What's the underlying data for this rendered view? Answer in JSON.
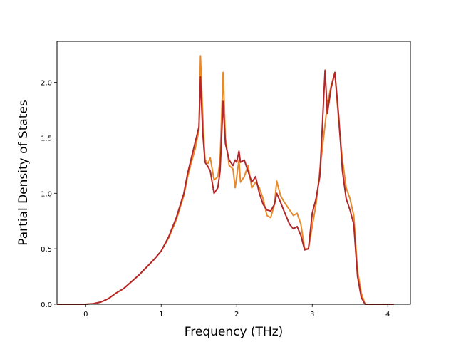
{
  "chart_data": {
    "type": "line",
    "title": "",
    "xlabel": "Frequency (THz)",
    "ylabel": "Partial Density of States",
    "xlim": [
      -0.38,
      4.3
    ],
    "ylim": [
      0.0,
      2.37
    ],
    "xticks": [
      0,
      1,
      2,
      3,
      4
    ],
    "xtick_labels": [
      "0",
      "1",
      "2",
      "3",
      "4"
    ],
    "yticks": [
      0.0,
      0.5,
      1.0,
      1.5,
      2.0
    ],
    "ytick_labels": [
      "0.0",
      "0.5",
      "1.0",
      "1.5",
      "2.0"
    ],
    "grid": false,
    "legend": "none",
    "series": [
      {
        "color": "#e8892a",
        "points": [
          [
            -0.38,
            0.0
          ],
          [
            0.0,
            0.0
          ],
          [
            0.1,
            0.005
          ],
          [
            0.2,
            0.02
          ],
          [
            0.3,
            0.05
          ],
          [
            0.4,
            0.1
          ],
          [
            0.5,
            0.14
          ],
          [
            0.6,
            0.2
          ],
          [
            0.7,
            0.26
          ],
          [
            0.8,
            0.33
          ],
          [
            0.9,
            0.4
          ],
          [
            1.0,
            0.48
          ],
          [
            1.1,
            0.6
          ],
          [
            1.2,
            0.76
          ],
          [
            1.3,
            0.98
          ],
          [
            1.35,
            1.15
          ],
          [
            1.4,
            1.28
          ],
          [
            1.45,
            1.4
          ],
          [
            1.5,
            1.57
          ],
          [
            1.52,
            2.24
          ],
          [
            1.55,
            1.7
          ],
          [
            1.58,
            1.3
          ],
          [
            1.62,
            1.27
          ],
          [
            1.65,
            1.32
          ],
          [
            1.7,
            1.12
          ],
          [
            1.75,
            1.15
          ],
          [
            1.78,
            1.3
          ],
          [
            1.82,
            2.09
          ],
          [
            1.85,
            1.5
          ],
          [
            1.9,
            1.25
          ],
          [
            1.95,
            1.22
          ],
          [
            1.98,
            1.05
          ],
          [
            2.0,
            1.15
          ],
          [
            2.03,
            1.3
          ],
          [
            2.05,
            1.1
          ],
          [
            2.1,
            1.15
          ],
          [
            2.15,
            1.25
          ],
          [
            2.2,
            1.05
          ],
          [
            2.25,
            1.1
          ],
          [
            2.3,
            1.05
          ],
          [
            2.35,
            0.95
          ],
          [
            2.4,
            0.8
          ],
          [
            2.45,
            0.78
          ],
          [
            2.5,
            0.9
          ],
          [
            2.53,
            1.11
          ],
          [
            2.58,
            0.98
          ],
          [
            2.62,
            0.93
          ],
          [
            2.7,
            0.85
          ],
          [
            2.75,
            0.8
          ],
          [
            2.8,
            0.82
          ],
          [
            2.85,
            0.72
          ],
          [
            2.9,
            0.5
          ],
          [
            2.95,
            0.5
          ],
          [
            3.0,
            0.7
          ],
          [
            3.05,
            0.9
          ],
          [
            3.1,
            1.2
          ],
          [
            3.15,
            1.5
          ],
          [
            3.2,
            1.8
          ],
          [
            3.25,
            1.97
          ],
          [
            3.3,
            2.09
          ],
          [
            3.35,
            1.65
          ],
          [
            3.4,
            1.3
          ],
          [
            3.45,
            1.05
          ],
          [
            3.5,
            0.95
          ],
          [
            3.55,
            0.8
          ],
          [
            3.6,
            0.3
          ],
          [
            3.65,
            0.1
          ],
          [
            3.7,
            0.0
          ],
          [
            4.0,
            0.0
          ],
          [
            4.08,
            0.0
          ]
        ]
      },
      {
        "color": "#b3262a",
        "points": [
          [
            -0.38,
            0.0
          ],
          [
            0.0,
            0.0
          ],
          [
            0.1,
            0.005
          ],
          [
            0.2,
            0.02
          ],
          [
            0.3,
            0.05
          ],
          [
            0.4,
            0.1
          ],
          [
            0.5,
            0.14
          ],
          [
            0.6,
            0.2
          ],
          [
            0.7,
            0.26
          ],
          [
            0.8,
            0.33
          ],
          [
            0.9,
            0.4
          ],
          [
            1.0,
            0.48
          ],
          [
            1.1,
            0.61
          ],
          [
            1.2,
            0.78
          ],
          [
            1.3,
            1.0
          ],
          [
            1.35,
            1.18
          ],
          [
            1.4,
            1.32
          ],
          [
            1.45,
            1.46
          ],
          [
            1.5,
            1.6
          ],
          [
            1.52,
            2.05
          ],
          [
            1.55,
            1.55
          ],
          [
            1.58,
            1.28
          ],
          [
            1.62,
            1.24
          ],
          [
            1.65,
            1.2
          ],
          [
            1.7,
            1.0
          ],
          [
            1.75,
            1.05
          ],
          [
            1.78,
            1.2
          ],
          [
            1.82,
            1.83
          ],
          [
            1.85,
            1.45
          ],
          [
            1.9,
            1.3
          ],
          [
            1.95,
            1.25
          ],
          [
            1.98,
            1.3
          ],
          [
            2.0,
            1.28
          ],
          [
            2.03,
            1.38
          ],
          [
            2.05,
            1.28
          ],
          [
            2.1,
            1.3
          ],
          [
            2.15,
            1.2
          ],
          [
            2.2,
            1.1
          ],
          [
            2.25,
            1.15
          ],
          [
            2.3,
            1.0
          ],
          [
            2.35,
            0.9
          ],
          [
            2.4,
            0.85
          ],
          [
            2.45,
            0.84
          ],
          [
            2.5,
            0.9
          ],
          [
            2.53,
            1.0
          ],
          [
            2.58,
            0.92
          ],
          [
            2.62,
            0.85
          ],
          [
            2.7,
            0.72
          ],
          [
            2.75,
            0.68
          ],
          [
            2.8,
            0.7
          ],
          [
            2.85,
            0.62
          ],
          [
            2.9,
            0.49
          ],
          [
            2.95,
            0.5
          ],
          [
            3.0,
            0.82
          ],
          [
            3.05,
            0.95
          ],
          [
            3.1,
            1.15
          ],
          [
            3.13,
            1.55
          ],
          [
            3.17,
            2.11
          ],
          [
            3.2,
            1.72
          ],
          [
            3.25,
            1.95
          ],
          [
            3.3,
            2.09
          ],
          [
            3.35,
            1.7
          ],
          [
            3.4,
            1.2
          ],
          [
            3.45,
            0.95
          ],
          [
            3.5,
            0.85
          ],
          [
            3.55,
            0.72
          ],
          [
            3.6,
            0.25
          ],
          [
            3.65,
            0.06
          ],
          [
            3.7,
            0.0
          ],
          [
            4.0,
            0.0
          ],
          [
            4.08,
            0.0
          ]
        ]
      }
    ]
  }
}
